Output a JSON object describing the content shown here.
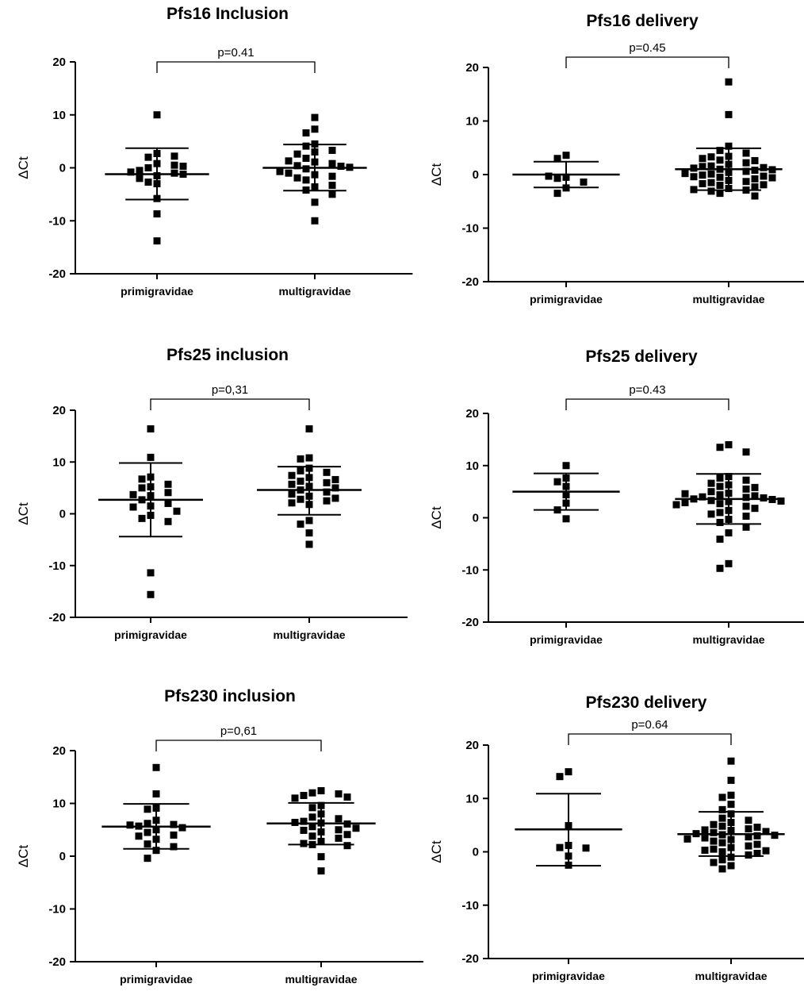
{
  "chart_data": [
    {
      "type": "scatter",
      "title": "Pfs16 Inclusion",
      "ylabel": "ΔCt",
      "ylim": [
        -20,
        20
      ],
      "yticks": [
        "20",
        "10",
        "0",
        "-10",
        "-20"
      ],
      "categories": [
        "primigravidae",
        "multigravidae"
      ],
      "p_value": "p=0.41",
      "series": [
        {
          "category": "primigravidae",
          "mean": -1.2,
          "sd_upper": 3.7,
          "sd_lower": -6.0,
          "values": [
            10.0,
            0.8,
            0.0,
            -1.5,
            2.0,
            2.2,
            -1.0,
            -3.0,
            -0.5,
            2.7,
            -1.2,
            0.3,
            -0.8,
            -2.7,
            -5.8,
            -8.7,
            -13.8,
            -2.0,
            0.5
          ]
        },
        {
          "category": "multigravidae",
          "mean": 0.0,
          "sd_upper": 4.4,
          "sd_lower": -4.3,
          "values": [
            9.5,
            7.3,
            6.6,
            4.5,
            4.1,
            3.3,
            3.0,
            1.8,
            1.1,
            0.8,
            0.4,
            -0.2,
            0.3,
            -1.3,
            -1.6,
            -2.3,
            -1.0,
            -3.6,
            -4.2,
            -5.0,
            -6.5,
            -10.0,
            2.6,
            0.1,
            -0.7,
            -3.3,
            1.3,
            -1.9
          ]
        }
      ]
    },
    {
      "type": "scatter",
      "title": "Pfs16 delivery",
      "ylabel": "ΔCt",
      "ylim": [
        -20,
        20
      ],
      "yticks": [
        "20",
        "10",
        "0",
        "-10",
        "-20"
      ],
      "categories": [
        "primigravidae",
        "multigravidae"
      ],
      "p_value": "p=0.45",
      "series": [
        {
          "category": "primigravidae",
          "mean": 0.0,
          "sd_upper": 2.4,
          "sd_lower": -2.4,
          "values": [
            3.6,
            3.0,
            -0.5,
            -0.7,
            -1.4,
            -2.5,
            -3.5,
            -0.3
          ]
        },
        {
          "category": "multigravidae",
          "mean": 1.0,
          "sd_upper": 4.9,
          "sd_lower": -2.9,
          "values": [
            17.3,
            11.2,
            5.3,
            4.5,
            4.0,
            3.4,
            3.3,
            2.7,
            2.6,
            2.2,
            1.9,
            1.6,
            1.5,
            1.3,
            1.0,
            0.8,
            0.6,
            0.4,
            0.1,
            -0.1,
            -0.3,
            -0.4,
            -0.5,
            -0.8,
            -1.1,
            -1.3,
            -1.5,
            -1.7,
            -2.0,
            -2.3,
            -2.6,
            -2.9,
            -3.1,
            -3.5,
            -4.0,
            0.9,
            -0.6,
            1.2,
            -1.9,
            0.2,
            3.0,
            -2.8
          ]
        }
      ]
    },
    {
      "type": "scatter",
      "title": "Pfs25 inclusion",
      "ylabel": "ΔCt",
      "ylim": [
        -20,
        20
      ],
      "yticks": [
        "20",
        "10",
        "0",
        "-10",
        "-20"
      ],
      "categories": [
        "primigravidae",
        "multigravidae"
      ],
      "p_value": "p=0,31",
      "series": [
        {
          "category": "primigravidae",
          "mean": 2.7,
          "sd_upper": 9.8,
          "sd_lower": -4.4,
          "values": [
            16.4,
            10.9,
            7.1,
            6.7,
            5.7,
            5.2,
            5.0,
            4.1,
            3.7,
            3.5,
            2.7,
            2.0,
            1.5,
            1.3,
            -0.3,
            -0.9,
            -1.5,
            -11.4,
            -15.6,
            0.5
          ]
        },
        {
          "category": "multigravidae",
          "mean": 4.6,
          "sd_upper": 9.1,
          "sd_lower": -0.2,
          "values": [
            16.4,
            10.8,
            10.6,
            8.8,
            8.3,
            8.0,
            7.4,
            7.0,
            6.3,
            6.0,
            5.7,
            5.3,
            5.0,
            4.6,
            4.2,
            3.8,
            3.4,
            2.8,
            2.5,
            2.1,
            1.8,
            -1.3,
            -2.0,
            -3.7,
            -5.9,
            6.6,
            3.0
          ]
        }
      ]
    },
    {
      "type": "scatter",
      "title": "Pfs25 delivery",
      "ylabel": "ΔCt",
      "ylim": [
        -20,
        20
      ],
      "yticks": [
        "20",
        "10",
        "0",
        "-10",
        "-20"
      ],
      "categories": [
        "primigravidae",
        "multigravidae"
      ],
      "p_value": "p=0.43",
      "series": [
        {
          "category": "primigravidae",
          "mean": 5.0,
          "sd_upper": 8.5,
          "sd_lower": 1.5,
          "values": [
            10.0,
            7.6,
            6.9,
            6.0,
            4.4,
            2.8,
            1.5,
            -0.2
          ]
        },
        {
          "category": "multigravidae",
          "mean": 3.6,
          "sd_upper": 8.4,
          "sd_lower": -1.2,
          "values": [
            14.0,
            13.5,
            12.6,
            7.9,
            7.6,
            7.2,
            6.6,
            6.3,
            6.0,
            5.8,
            5.5,
            5.0,
            4.7,
            4.4,
            4.2,
            4.0,
            3.9,
            3.8,
            3.6,
            3.5,
            3.3,
            3.1,
            2.9,
            2.7,
            2.2,
            1.8,
            1.4,
            1.0,
            0.7,
            0.3,
            -0.3,
            -0.9,
            -1.8,
            -2.9,
            -4.1,
            -8.8,
            -9.7,
            4.6,
            3.2,
            2.5
          ]
        }
      ]
    },
    {
      "type": "scatter",
      "title": "Pfs230 inclusion",
      "ylabel": "ΔCt",
      "ylim": [
        -20,
        20
      ],
      "yticks": [
        "20",
        "10",
        "0",
        "-10",
        "-20"
      ],
      "categories": [
        "primigravidae",
        "multigravidae"
      ],
      "p_value": "p=0,61",
      "series": [
        {
          "category": "primigravidae",
          "mean": 5.6,
          "sd_upper": 9.9,
          "sd_lower": 1.4,
          "values": [
            16.8,
            11.8,
            9.1,
            8.9,
            6.8,
            6.2,
            6.0,
            5.7,
            5.4,
            5.0,
            4.5,
            4.0,
            3.8,
            3.2,
            2.3,
            1.8,
            1.1,
            -0.4,
            5.9
          ]
        },
        {
          "category": "multigravidae",
          "mean": 6.2,
          "sd_upper": 10.1,
          "sd_lower": 2.2,
          "values": [
            12.4,
            12.0,
            11.8,
            11.5,
            11.2,
            11.0,
            9.6,
            9.2,
            8.0,
            7.4,
            7.1,
            6.6,
            6.3,
            6.1,
            5.6,
            5.0,
            4.9,
            4.6,
            4.1,
            3.8,
            3.4,
            2.8,
            2.4,
            2.2,
            2.0,
            -0.1,
            -2.8,
            6.4,
            5.3
          ]
        }
      ]
    },
    {
      "type": "scatter",
      "title": "Pfs230 delivery",
      "ylabel": "ΔCt",
      "ylim": [
        -20,
        20
      ],
      "yticks": [
        "20",
        "10",
        "0",
        "-10",
        "-20"
      ],
      "categories": [
        "primigravidae",
        "multigravidae"
      ],
      "p_value": "p=0.64",
      "series": [
        {
          "category": "primigravidae",
          "mean": 4.2,
          "sd_upper": 10.9,
          "sd_lower": -2.6,
          "values": [
            15.0,
            14.1,
            4.9,
            1.2,
            0.8,
            0.7,
            -0.8,
            -2.5
          ]
        },
        {
          "category": "multigravidae",
          "mean": 3.3,
          "sd_upper": 7.5,
          "sd_lower": -0.8,
          "values": [
            17.0,
            13.4,
            10.6,
            10.2,
            8.9,
            7.9,
            7.1,
            6.3,
            5.9,
            5.5,
            5.1,
            4.8,
            4.6,
            4.3,
            4.1,
            4.0,
            3.8,
            3.6,
            3.4,
            3.2,
            3.0,
            2.8,
            2.6,
            2.3,
            2.0,
            1.7,
            1.4,
            1.1,
            0.8,
            0.5,
            0.3,
            0.0,
            -0.3,
            -0.6,
            -1.0,
            -1.5,
            -2.0,
            -2.6,
            -3.2,
            3.1,
            2.4,
            0.2
          ]
        }
      ]
    }
  ]
}
